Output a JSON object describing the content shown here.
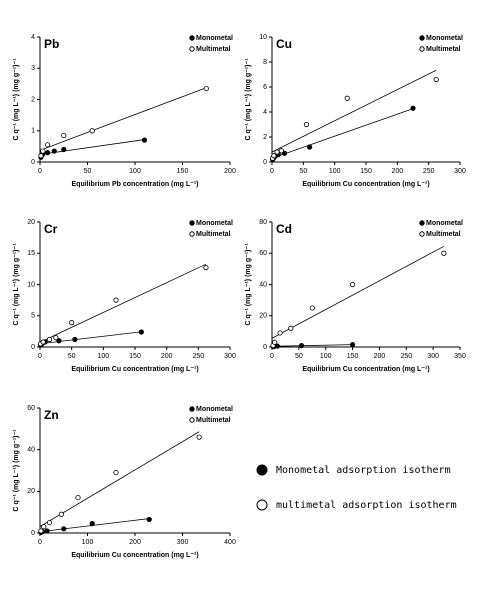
{
  "chart_data": [
    {
      "type": "scatter",
      "title": "Pb",
      "x_label": "Equilibrium Pb concentration (mg L⁻¹)",
      "y_label": "C q⁻¹ (mg L⁻¹) (mg g⁻¹)⁻¹",
      "xlim": [
        0,
        200
      ],
      "xticks": [
        0,
        50,
        100,
        150,
        200
      ],
      "ylim": [
        0,
        4
      ],
      "yticks": [
        0,
        1,
        2,
        3,
        4
      ],
      "legend": "upper right",
      "series": [
        {
          "name": "Monometal",
          "color": "#000000",
          "marker": "filled",
          "x": [
            1,
            3,
            8,
            15,
            25,
            110
          ],
          "values": [
            0.15,
            0.25,
            0.3,
            0.35,
            0.4,
            0.7
          ]
        },
        {
          "name": "Multimetal",
          "color": "#000000",
          "marker": "hollow",
          "x": [
            1,
            3,
            8,
            25,
            55,
            175
          ],
          "values": [
            0.2,
            0.35,
            0.55,
            0.85,
            1.0,
            2.35
          ]
        }
      ]
    },
    {
      "type": "scatter",
      "title": "Cu",
      "x_label": "Equilibrium Cu concentration (mg L⁻¹)",
      "y_label": "C q⁻¹ (mg L⁻¹) (mg g⁻¹)⁻¹",
      "xlim": [
        0,
        300
      ],
      "xticks": [
        0,
        50,
        100,
        150,
        200,
        250,
        300
      ],
      "ylim": [
        0,
        10
      ],
      "yticks": [
        0,
        2,
        4,
        6,
        8,
        10
      ],
      "legend": "upper right",
      "series": [
        {
          "name": "Monometal",
          "color": "#000000",
          "marker": "filled",
          "x": [
            1,
            3,
            6,
            10,
            20,
            60,
            225
          ],
          "values": [
            0.2,
            0.35,
            0.5,
            0.6,
            0.7,
            1.2,
            4.3
          ]
        },
        {
          "name": "Multimetal",
          "color": "#000000",
          "marker": "hollow",
          "x": [
            1,
            3,
            8,
            15,
            55,
            120,
            262
          ],
          "values": [
            0.3,
            0.5,
            0.8,
            0.9,
            3.0,
            5.1,
            6.6
          ]
        }
      ]
    },
    {
      "type": "scatter",
      "title": "Cr",
      "x_label": "Equilibrium Cu concentration (mg L⁻¹)",
      "y_label": "C q⁻¹ (mg L⁻¹) (mg g⁻¹)⁻¹",
      "xlim": [
        0,
        300
      ],
      "xticks": [
        0,
        50,
        100,
        150,
        200,
        250,
        300
      ],
      "ylim": [
        0,
        20
      ],
      "yticks": [
        0,
        5,
        10,
        15,
        20
      ],
      "legend": "upper right",
      "series": [
        {
          "name": "Monometal",
          "color": "#000000",
          "marker": "filled",
          "x": [
            1,
            3,
            8,
            30,
            55,
            160
          ],
          "values": [
            0.3,
            0.5,
            0.8,
            1.0,
            1.2,
            2.4
          ]
        },
        {
          "name": "Multimetal",
          "color": "#000000",
          "marker": "hollow",
          "x": [
            1,
            5,
            15,
            25,
            50,
            120,
            262
          ],
          "values": [
            0.5,
            0.8,
            1.2,
            1.5,
            3.9,
            7.5,
            12.7
          ]
        }
      ]
    },
    {
      "type": "scatter",
      "title": "Cd",
      "x_label": "Equilibrium Cu concentration (mg L⁻¹)",
      "y_label": "C q⁻¹ (mg L⁻¹) (mg g⁻¹)⁻¹",
      "xlim": [
        0,
        350
      ],
      "xticks": [
        0,
        50,
        100,
        150,
        200,
        250,
        300,
        350
      ],
      "ylim": [
        0,
        80
      ],
      "yticks": [
        0,
        20,
        40,
        60,
        80
      ],
      "legend": "upper right",
      "series": [
        {
          "name": "Monometal",
          "color": "#000000",
          "marker": "filled",
          "x": [
            2,
            5,
            10,
            55,
            150
          ],
          "values": [
            0.3,
            0.5,
            0.6,
            0.9,
            1.5
          ]
        },
        {
          "name": "Multimetal",
          "color": "#000000",
          "marker": "hollow",
          "x": [
            2,
            5,
            15,
            35,
            75,
            150,
            320
          ],
          "values": [
            1,
            3,
            9,
            12,
            25,
            40,
            60
          ]
        }
      ]
    },
    {
      "type": "scatter",
      "title": "Zn",
      "x_label": "Equilibrium Cu concentration (mg L⁻¹)",
      "y_label": "C q⁻¹ (mg L⁻¹) (mg g⁻¹)⁻¹",
      "xlim": [
        0,
        400
      ],
      "xticks": [
        0,
        100,
        200,
        300,
        400
      ],
      "ylim": [
        0,
        60
      ],
      "yticks": [
        0,
        20,
        40,
        60
      ],
      "legend": "upper right",
      "series": [
        {
          "name": "Monometal",
          "color": "#000000",
          "marker": "filled",
          "x": [
            2,
            5,
            15,
            50,
            110,
            230
          ],
          "values": [
            0.3,
            0.6,
            1.0,
            2.0,
            4.5,
            6.5
          ]
        },
        {
          "name": "Multimetal",
          "color": "#000000",
          "marker": "hollow",
          "x": [
            2,
            8,
            20,
            45,
            80,
            160,
            335
          ],
          "values": [
            1,
            3,
            5,
            9,
            17,
            29,
            46
          ]
        }
      ]
    }
  ],
  "figure_legend": [
    "Monometal adsorption isotherm",
    "multimetal adsorption isotherm"
  ]
}
